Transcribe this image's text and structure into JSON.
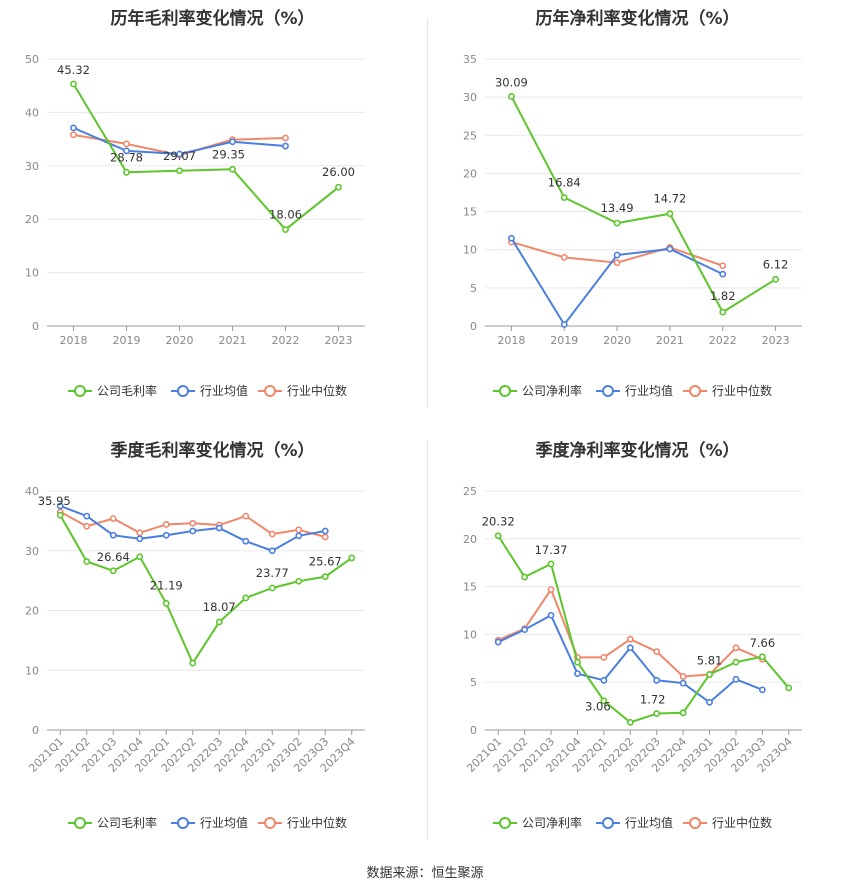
{
  "colors": {
    "company": "#5cc62b",
    "avg": "#4a7fe0",
    "median": "#f0876a",
    "grid": "#e8e8e8",
    "axis": "#888888"
  },
  "footer": "数据来源：恒生聚源",
  "chart_data": [
    {
      "type": "line",
      "title": "历年毛利率变化情况（%）",
      "categories": [
        "2018",
        "2019",
        "2020",
        "2021",
        "2022",
        "2023"
      ],
      "ylim": [
        0,
        50
      ],
      "yticks": [
        0,
        10,
        20,
        30,
        40,
        50
      ],
      "legend_position": "bottom",
      "series": [
        {
          "name": "公司毛利率",
          "role": "company",
          "values": [
            45.32,
            28.78,
            29.07,
            29.35,
            18.06,
            26.0
          ],
          "labels": [
            "45.32",
            "28.78",
            "29.07",
            "29.35",
            "18.06",
            "26.00"
          ]
        },
        {
          "name": "行业均值",
          "role": "avg",
          "values": [
            37.1,
            32.8,
            32.2,
            34.5,
            33.7,
            null
          ]
        },
        {
          "name": "行业中位数",
          "role": "median",
          "values": [
            35.8,
            34.1,
            32.0,
            34.9,
            35.2,
            null
          ]
        }
      ]
    },
    {
      "type": "line",
      "title": "历年净利率变化情况（%）",
      "categories": [
        "2018",
        "2019",
        "2020",
        "2021",
        "2022",
        "2023"
      ],
      "ylim": [
        0,
        35
      ],
      "yticks": [
        0,
        5,
        10,
        15,
        20,
        25,
        30,
        35
      ],
      "legend_position": "bottom",
      "series": [
        {
          "name": "公司净利率",
          "role": "company",
          "values": [
            30.09,
            16.84,
            13.49,
            14.72,
            1.82,
            6.12
          ],
          "labels": [
            "30.09",
            "16.84",
            "13.49",
            "14.72",
            "1.82",
            "6.12"
          ]
        },
        {
          "name": "行业均值",
          "role": "avg",
          "values": [
            11.5,
            0.2,
            9.3,
            10.1,
            6.8,
            null
          ]
        },
        {
          "name": "行业中位数",
          "role": "median",
          "values": [
            11.0,
            9.0,
            8.3,
            10.3,
            7.9,
            null
          ]
        }
      ]
    },
    {
      "type": "line",
      "title": "季度毛利率变化情况（%）",
      "categories": [
        "2021Q1",
        "2021Q2",
        "2021Q3",
        "2021Q4",
        "2022Q1",
        "2022Q2",
        "2022Q3",
        "2022Q4",
        "2023Q1",
        "2023Q2",
        "2023Q3",
        "2023Q4"
      ],
      "ylim": [
        0,
        40
      ],
      "yticks": [
        0,
        10,
        20,
        30,
        40
      ],
      "legend_position": "bottom",
      "series": [
        {
          "name": "公司毛利率",
          "role": "company",
          "values": [
            35.95,
            28.2,
            26.64,
            29.0,
            21.19,
            11.2,
            18.07,
            22.1,
            23.77,
            24.9,
            25.67,
            28.8
          ],
          "labels": [
            "35.95",
            "",
            "26.64",
            "",
            "21.19",
            "",
            "18.07",
            "",
            "23.77",
            "",
            "25.67",
            ""
          ]
        },
        {
          "name": "行业均值",
          "role": "avg",
          "values": [
            37.5,
            35.8,
            32.6,
            32.0,
            32.6,
            33.3,
            33.8,
            31.6,
            30.0,
            32.5,
            33.3,
            null
          ]
        },
        {
          "name": "行业中位数",
          "role": "median",
          "values": [
            36.5,
            34.1,
            35.4,
            33.0,
            34.4,
            34.6,
            34.3,
            35.8,
            32.8,
            33.5,
            32.3,
            null
          ]
        }
      ]
    },
    {
      "type": "line",
      "title": "季度净利率变化情况（%）",
      "categories": [
        "2021Q1",
        "2021Q2",
        "2021Q3",
        "2021Q4",
        "2022Q1",
        "2022Q2",
        "2022Q3",
        "2022Q4",
        "2023Q1",
        "2023Q2",
        "2023Q3",
        "2023Q4"
      ],
      "ylim": [
        0,
        25
      ],
      "yticks": [
        0,
        5,
        10,
        15,
        20,
        25
      ],
      "legend_position": "bottom",
      "series": [
        {
          "name": "公司净利率",
          "role": "company",
          "values": [
            20.32,
            16.0,
            17.37,
            7.1,
            3.06,
            0.8,
            1.72,
            1.8,
            5.81,
            7.1,
            7.66,
            4.4
          ],
          "labels": [
            "20.32",
            "",
            "17.37",
            "",
            "3.06",
            "",
            "1.72",
            "",
            "5.81",
            "",
            "7.66",
            ""
          ]
        },
        {
          "name": "行业均值",
          "role": "avg",
          "values": [
            9.2,
            10.5,
            12.0,
            5.9,
            5.2,
            8.6,
            5.2,
            4.9,
            2.9,
            5.3,
            4.2,
            null
          ]
        },
        {
          "name": "行业中位数",
          "role": "median",
          "values": [
            9.4,
            10.6,
            14.7,
            7.6,
            7.6,
            9.5,
            8.2,
            5.6,
            5.8,
            8.6,
            7.4,
            null
          ]
        }
      ]
    }
  ]
}
